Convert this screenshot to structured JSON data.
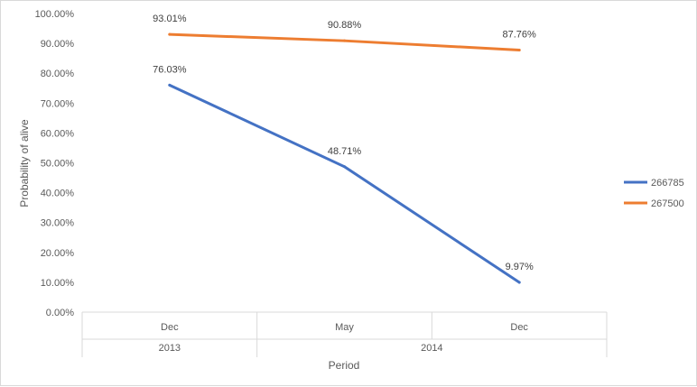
{
  "chart_data": {
    "type": "line",
    "title": "",
    "xlabel": "Period",
    "ylabel": "Probability of alive",
    "ylim": [
      0,
      100
    ],
    "y_tick_step": 10,
    "y_tick_format": "percent_2dp",
    "grid": false,
    "legend_position": "right",
    "categories": [
      "Dec",
      "May",
      "Dec"
    ],
    "category_groups": [
      {
        "label": "2013",
        "span": 1
      },
      {
        "label": "2014",
        "span": 2
      }
    ],
    "series": [
      {
        "name": "266785",
        "color": "#4472c4",
        "values": [
          76.03,
          48.71,
          9.97
        ],
        "labels": [
          "76.03%",
          "48.71%",
          "9.97%"
        ]
      },
      {
        "name": "267500",
        "color": "#ed7d31",
        "values": [
          93.01,
          90.88,
          87.76
        ],
        "labels": [
          "93.01%",
          "90.88%",
          "87.76%"
        ]
      }
    ]
  }
}
